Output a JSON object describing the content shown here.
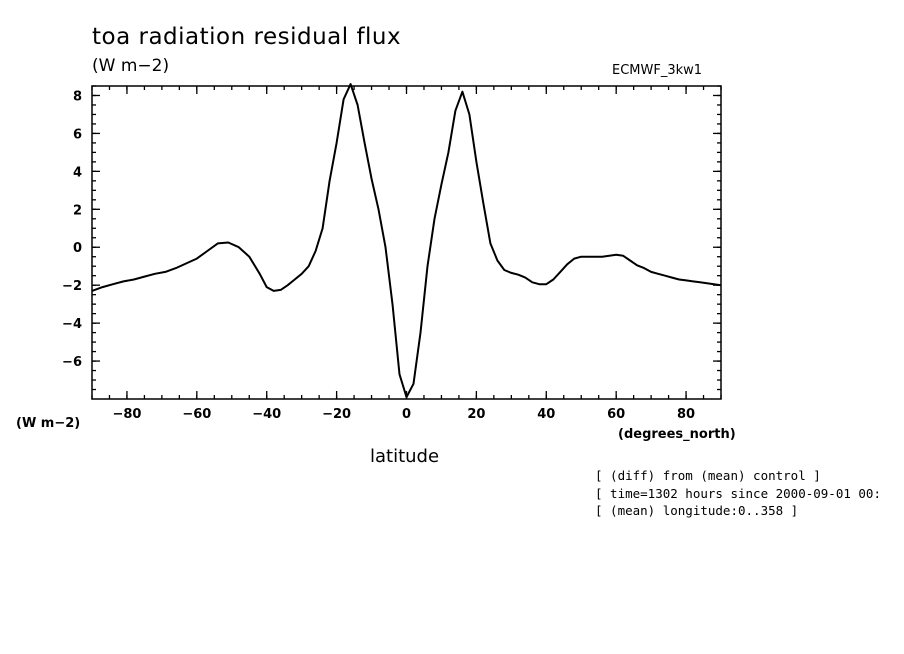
{
  "chart_data": {
    "type": "line",
    "title": "toa radiation residual flux",
    "units_label": "(W m−2)",
    "model_label": "ECMWF_3kw1",
    "y_units_label": "(W m−2)",
    "x_units_label": "(degrees_north)",
    "xlabel": "latitude",
    "xlim": [
      -90,
      90
    ],
    "ylim": [
      -8,
      8.5
    ],
    "x_ticks": [
      -80,
      -60,
      -40,
      -20,
      0,
      20,
      40,
      60,
      80
    ],
    "x_tick_labels": [
      "−80",
      "−60",
      "−40",
      "−20",
      "0",
      "20",
      "40",
      "60",
      "80"
    ],
    "y_ticks": [
      -6,
      -4,
      -2,
      0,
      2,
      4,
      6,
      8
    ],
    "y_tick_labels": [
      "−6",
      "−4",
      "−2",
      "0",
      "2",
      "4",
      "6",
      "8"
    ],
    "series": [
      {
        "x": [
          -90,
          -87,
          -84,
          -81,
          -78,
          -75,
          -72,
          -69,
          -66,
          -63,
          -60,
          -57,
          -54,
          -51,
          -48,
          -45,
          -42,
          -40,
          -38,
          -36,
          -34,
          -32,
          -30,
          -28,
          -26,
          -24,
          -22,
          -20,
          -18,
          -16,
          -14,
          -12,
          -10,
          -8,
          -6,
          -4,
          -2,
          0,
          2,
          4,
          6,
          8,
          10,
          12,
          14,
          16,
          18,
          20,
          22,
          24,
          26,
          28,
          30,
          32,
          34,
          36,
          38,
          40,
          42,
          44,
          46,
          48,
          50,
          52,
          54,
          56,
          58,
          60,
          62,
          64,
          66,
          68,
          70,
          72,
          74,
          76,
          78,
          80,
          82,
          84,
          86,
          88,
          90
        ],
        "y": [
          -2.3,
          -2.1,
          -1.95,
          -1.8,
          -1.7,
          -1.55,
          -1.4,
          -1.3,
          -1.1,
          -0.85,
          -0.6,
          -0.2,
          0.2,
          0.25,
          0.0,
          -0.5,
          -1.4,
          -2.1,
          -2.3,
          -2.25,
          -2.0,
          -1.7,
          -1.4,
          -1.0,
          -0.2,
          1.0,
          3.5,
          5.5,
          7.8,
          8.6,
          7.5,
          5.5,
          3.6,
          2.0,
          0.0,
          -3.0,
          -6.7,
          -7.9,
          -7.2,
          -4.5,
          -1.0,
          1.5,
          3.3,
          5.0,
          7.2,
          8.2,
          7.0,
          4.5,
          2.3,
          0.2,
          -0.7,
          -1.2,
          -1.35,
          -1.45,
          -1.6,
          -1.85,
          -1.95,
          -1.95,
          -1.7,
          -1.3,
          -0.9,
          -0.6,
          -0.5,
          -0.5,
          -0.5,
          -0.5,
          -0.45,
          -0.4,
          -0.45,
          -0.7,
          -0.95,
          -1.1,
          -1.3,
          -1.4,
          -1.5,
          -1.6,
          -1.7,
          -1.75,
          -1.8,
          -1.85,
          -1.9,
          -1.95,
          -2.0
        ]
      }
    ],
    "notes": [
      "[ (diff) from (mean) control ]",
      "[ time=1302 hours since 2000-09-01 00:",
      "[ (mean) longitude:0..358 ]"
    ]
  }
}
